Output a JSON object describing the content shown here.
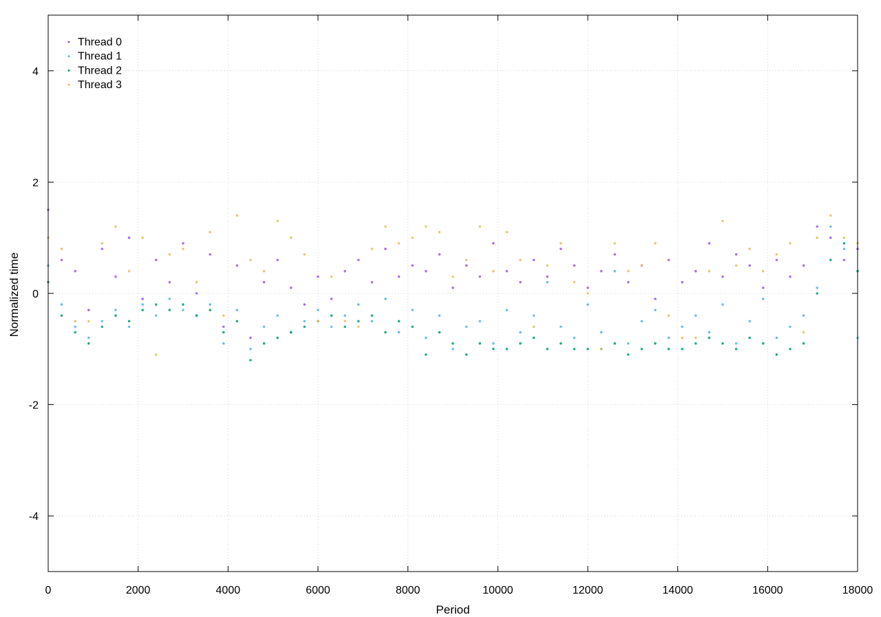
{
  "chart_data": {
    "type": "scatter",
    "xlabel": "Period",
    "ylabel": "Normalized time",
    "xlim": [
      0,
      18000
    ],
    "ylim": [
      -5,
      5
    ],
    "x_ticks": [
      0,
      2000,
      4000,
      6000,
      8000,
      10000,
      12000,
      14000,
      16000,
      18000
    ],
    "x_tick_labels": [
      "0",
      "2000",
      "4000",
      "6000",
      "8000",
      "10000",
      "12000",
      "14000",
      "16000",
      "18000"
    ],
    "y_ticks": [
      -4,
      -2,
      0,
      2,
      4
    ],
    "y_tick_labels": [
      "-4",
      "-2",
      "0",
      "2",
      "4"
    ],
    "grid": true,
    "legend_position": "top-left",
    "series": [
      {
        "name": "Thread 0",
        "color": "#9b59e6",
        "marker": "dot",
        "x": [
          0,
          300,
          600,
          900,
          1200,
          1500,
          1800,
          2100,
          2400,
          2700,
          3000,
          3300,
          3600,
          3900,
          4200,
          4500,
          4800,
          5100,
          5400,
          5700,
          6000,
          6300,
          6600,
          6900,
          7200,
          7500,
          7800,
          8100,
          8400,
          8700,
          9000,
          9300,
          9600,
          9900,
          10200,
          10500,
          10800,
          11100,
          11400,
          11700,
          12000,
          12300,
          12600,
          12900,
          13200,
          13500,
          13800,
          14100,
          14400,
          14700,
          15000,
          15300,
          15600,
          15900,
          16200,
          16500,
          16800,
          17100,
          17400,
          17700,
          18000
        ],
        "y": [
          1.5,
          0.6,
          0.4,
          -0.3,
          0.8,
          0.3,
          1.0,
          -0.1,
          0.6,
          0.2,
          0.9,
          0.0,
          0.7,
          -0.6,
          0.5,
          -0.8,
          0.2,
          0.6,
          0.1,
          -0.2,
          0.3,
          -0.1,
          0.4,
          0.6,
          0.2,
          0.8,
          0.3,
          0.5,
          0.4,
          0.7,
          0.1,
          0.5,
          0.3,
          0.9,
          0.4,
          0.2,
          0.6,
          0.3,
          0.8,
          0.5,
          0.1,
          0.4,
          0.7,
          0.2,
          0.5,
          -0.1,
          0.6,
          0.2,
          0.4,
          0.9,
          0.3,
          0.7,
          0.5,
          0.1,
          0.6,
          0.3,
          0.5,
          1.2,
          1.0,
          0.6,
          0.8
        ]
      },
      {
        "name": "Thread 1",
        "color": "#56b4e9",
        "marker": "dot",
        "x": [
          0,
          300,
          600,
          900,
          1200,
          1500,
          1800,
          2100,
          2400,
          2700,
          3000,
          3300,
          3600,
          3900,
          4200,
          4500,
          4800,
          5100,
          5400,
          5700,
          6000,
          6300,
          6600,
          6900,
          7200,
          7500,
          7800,
          8100,
          8400,
          8700,
          9000,
          9300,
          9600,
          9900,
          10200,
          10500,
          10800,
          11100,
          11400,
          11700,
          12000,
          12300,
          12600,
          12900,
          13200,
          13500,
          13800,
          14100,
          14400,
          14700,
          15000,
          15300,
          15600,
          15900,
          16200,
          16500,
          16800,
          17100,
          17400,
          17700,
          18000
        ],
        "y": [
          0.5,
          -0.2,
          -0.6,
          -0.8,
          -0.5,
          -0.3,
          -0.6,
          -0.2,
          -0.4,
          -0.1,
          -0.3,
          -0.4,
          -0.2,
          -0.9,
          -0.3,
          -1.0,
          -0.6,
          -0.4,
          -0.7,
          -0.5,
          -0.3,
          -0.6,
          -0.4,
          -0.2,
          -0.5,
          -0.1,
          -0.7,
          -0.3,
          -0.8,
          -0.4,
          -1.0,
          -0.6,
          -0.5,
          -0.9,
          -0.3,
          -0.7,
          -0.4,
          0.2,
          -0.6,
          -0.8,
          -0.2,
          -0.7,
          0.4,
          -0.9,
          -0.5,
          -0.3,
          -0.8,
          -0.6,
          -0.4,
          -0.7,
          -0.2,
          -0.9,
          -0.5,
          -0.1,
          -0.8,
          -0.6,
          -0.4,
          0.1,
          1.2,
          0.8,
          -0.8
        ]
      },
      {
        "name": "Thread 2",
        "color": "#009e73",
        "marker": "dot",
        "x": [
          0,
          300,
          600,
          900,
          1200,
          1500,
          1800,
          2100,
          2400,
          2700,
          3000,
          3300,
          3600,
          3900,
          4200,
          4500,
          4800,
          5100,
          5400,
          5700,
          6000,
          6300,
          6600,
          6900,
          7200,
          7500,
          7800,
          8100,
          8400,
          8700,
          9000,
          9300,
          9600,
          9900,
          10200,
          10500,
          10800,
          11100,
          11400,
          11700,
          12000,
          12300,
          12600,
          12900,
          13200,
          13500,
          13800,
          14100,
          14400,
          14700,
          15000,
          15300,
          15600,
          15900,
          16200,
          16500,
          16800,
          17100,
          17400,
          17700,
          18000
        ],
        "y": [
          0.2,
          -0.4,
          -0.7,
          -0.9,
          -0.6,
          -0.4,
          -0.5,
          -0.3,
          -0.2,
          -0.3,
          -0.2,
          -0.4,
          -0.3,
          -0.7,
          -0.5,
          -1.2,
          -0.9,
          -0.8,
          -0.7,
          -0.6,
          -0.5,
          -0.4,
          -0.6,
          -0.5,
          -0.4,
          -0.7,
          -0.5,
          -0.6,
          -1.1,
          -0.7,
          -0.9,
          -1.1,
          -0.9,
          -1.0,
          -1.0,
          -0.9,
          -0.8,
          -1.0,
          -0.9,
          -1.0,
          -1.0,
          -1.0,
          -0.9,
          -1.1,
          -1.0,
          -0.9,
          -1.0,
          -1.0,
          -0.9,
          -0.8,
          -0.9,
          -1.0,
          -0.8,
          -0.9,
          -1.1,
          -1.0,
          -0.9,
          0.0,
          0.6,
          0.9,
          0.4
        ]
      },
      {
        "name": "Thread 3",
        "color": "#e6c05c",
        "marker": "dot",
        "x": [
          0,
          300,
          600,
          900,
          1200,
          1500,
          1800,
          2100,
          2400,
          2700,
          3000,
          3300,
          3600,
          3900,
          4200,
          4500,
          4800,
          5100,
          5400,
          5700,
          6000,
          6300,
          6600,
          6900,
          7200,
          7500,
          7800,
          8100,
          8400,
          8700,
          9000,
          9300,
          9600,
          9900,
          10200,
          10500,
          10800,
          11100,
          11400,
          11700,
          12000,
          12300,
          12600,
          12900,
          13200,
          13500,
          13800,
          14100,
          14400,
          14700,
          15000,
          15300,
          15600,
          15900,
          16200,
          16500,
          16800,
          17100,
          17400,
          17700,
          18000
        ],
        "y": [
          1.0,
          0.8,
          -0.5,
          -0.5,
          0.9,
          1.2,
          0.4,
          1.0,
          -1.1,
          0.7,
          0.8,
          0.2,
          1.1,
          -0.4,
          1.4,
          0.6,
          0.4,
          1.3,
          1.0,
          0.7,
          -0.5,
          0.3,
          -0.5,
          -0.6,
          0.8,
          1.2,
          0.9,
          1.0,
          1.2,
          1.1,
          0.3,
          0.6,
          1.2,
          0.4,
          1.1,
          0.6,
          -0.6,
          0.5,
          0.9,
          0.2,
          0.0,
          -1.0,
          0.9,
          0.4,
          0.5,
          0.9,
          -0.4,
          -0.8,
          -0.8,
          0.4,
          1.3,
          0.5,
          0.8,
          0.4,
          0.7,
          0.9,
          -0.7,
          1.0,
          1.4,
          1.0,
          0.9
        ]
      }
    ]
  }
}
